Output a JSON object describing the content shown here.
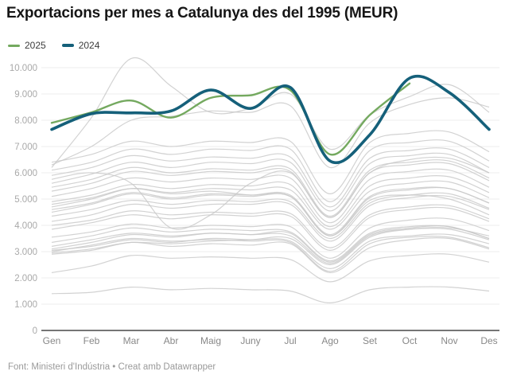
{
  "title": "Exportacions per mes a Catalunya des del 1995 (MEUR)",
  "legend": [
    {
      "label": "2025",
      "color": "#74a95f"
    },
    {
      "label": "2024",
      "color": "#15607a"
    }
  ],
  "footer": "Font: Ministeri d'Indústria • Creat amb Datawrapper",
  "colors": {
    "green_2025": "#74a95f",
    "teal_2024": "#15607a",
    "historical_gray": "#c8c8c8",
    "gridline": "#ececec",
    "axis": "#757575"
  },
  "chart_data": {
    "type": "line",
    "title": "Exportacions per mes a Catalunya des del 1995 (MEUR)",
    "xlabel": "",
    "ylabel": "MEUR",
    "grid": true,
    "legend_position": "top-left",
    "categories": [
      "Gen",
      "Feb",
      "Mar",
      "Abr",
      "Maig",
      "Juny",
      "Jul",
      "Ago",
      "Set",
      "Oct",
      "Nov",
      "Des"
    ],
    "ylim": [
      0,
      10500
    ],
    "yticks": [
      0,
      1000,
      2000,
      3000,
      4000,
      5000,
      6000,
      7000,
      8000,
      9000,
      10000
    ],
    "ytick_labels": [
      "0",
      "1.000",
      "2.000",
      "3.000",
      "4.000",
      "5.000",
      "6.000",
      "7.000",
      "8.000",
      "9.000",
      "10.000"
    ],
    "series": [
      {
        "name": "2025",
        "color": "#74a95f",
        "stroke_width": 2.4,
        "values": [
          7900,
          8300,
          8750,
          8100,
          8850,
          8950,
          9150,
          6700,
          8200,
          9400
        ]
      },
      {
        "name": "2024",
        "color": "#15607a",
        "stroke_width": 3.6,
        "values": [
          7650,
          8250,
          8280,
          8350,
          9150,
          8450,
          9250,
          6450,
          7450,
          9600,
          9050,
          7650
        ]
      }
    ],
    "historical": {
      "note": "unlabeled gray background lines, one per year since 1995 (values estimated)",
      "color": "#c8c8c8",
      "series": [
        [
          1400,
          1450,
          1650,
          1550,
          1600,
          1550,
          1500,
          1050,
          1550,
          1650,
          1650,
          1500
        ],
        [
          2200,
          2450,
          2850,
          2750,
          2800,
          2750,
          2700,
          1850,
          2650,
          2850,
          2900,
          2600
        ],
        [
          2900,
          3050,
          3350,
          3200,
          3300,
          3250,
          3300,
          2200,
          3150,
          3450,
          3500,
          3100
        ],
        [
          3000,
          3250,
          3500,
          3400,
          3450,
          3400,
          3350,
          2250,
          3300,
          3550,
          3550,
          3150
        ],
        [
          3050,
          3200,
          3450,
          3350,
          3500,
          3450,
          3400,
          2350,
          3400,
          3600,
          3650,
          3300
        ],
        [
          3100,
          3350,
          3650,
          3550,
          3700,
          3650,
          3700,
          2600,
          3650,
          3900,
          3950,
          3500
        ],
        [
          3350,
          3600,
          3900,
          3750,
          3850,
          3800,
          3750,
          2650,
          3700,
          3950,
          3950,
          3500
        ],
        [
          3200,
          3450,
          3700,
          3600,
          3700,
          3650,
          3600,
          2550,
          3600,
          3850,
          3850,
          3450
        ],
        [
          3550,
          3750,
          4050,
          3900,
          4000,
          3950,
          3950,
          2750,
          3900,
          4200,
          4250,
          3800
        ],
        [
          3850,
          4100,
          4400,
          4250,
          4400,
          4350,
          4350,
          3050,
          4300,
          4600,
          4650,
          4150
        ],
        [
          4000,
          4200,
          4550,
          4400,
          4500,
          4450,
          4450,
          3150,
          4400,
          4700,
          4750,
          4250
        ],
        [
          4350,
          4600,
          4950,
          4800,
          4950,
          4900,
          4900,
          3500,
          4850,
          5150,
          5200,
          4650
        ],
        [
          4700,
          5000,
          5400,
          5250,
          5400,
          5350,
          5350,
          3850,
          5300,
          5600,
          5650,
          5050
        ],
        [
          4800,
          5050,
          5400,
          5200,
          5300,
          5150,
          5100,
          3600,
          4950,
          5150,
          5000,
          4400
        ],
        [
          2950,
          3100,
          3350,
          3300,
          3400,
          3450,
          3500,
          2500,
          3550,
          3850,
          3900,
          3600
        ],
        [
          4150,
          4400,
          4800,
          4650,
          4800,
          4800,
          4800,
          3400,
          4750,
          5050,
          5100,
          4600
        ],
        [
          4500,
          4800,
          5200,
          5000,
          5150,
          5100,
          5100,
          3600,
          5050,
          5350,
          5400,
          4850
        ],
        [
          4600,
          4850,
          5250,
          5050,
          5200,
          5150,
          5150,
          3650,
          5100,
          5400,
          5400,
          4850
        ],
        [
          4900,
          5150,
          5550,
          5400,
          5550,
          5500,
          5550,
          3950,
          5500,
          5800,
          5850,
          5250
        ],
        [
          5100,
          5400,
          5800,
          5650,
          5800,
          5750,
          5800,
          4100,
          5750,
          6050,
          6100,
          5450
        ],
        [
          5300,
          5600,
          6050,
          5900,
          6050,
          6000,
          6050,
          4300,
          6000,
          6300,
          6350,
          5700
        ],
        [
          5450,
          5750,
          6200,
          6000,
          6150,
          6100,
          6150,
          4350,
          6100,
          6400,
          6450,
          5800
        ],
        [
          5600,
          5950,
          6400,
          6200,
          6400,
          6350,
          6400,
          4550,
          6350,
          6650,
          6700,
          6000
        ],
        [
          5900,
          6200,
          6650,
          6450,
          6600,
          6550,
          6600,
          4700,
          6550,
          6850,
          6900,
          6200
        ],
        [
          6100,
          6400,
          6900,
          6700,
          6900,
          6850,
          6900,
          4900,
          6850,
          7150,
          7200,
          6450
        ],
        [
          5750,
          6000,
          5600,
          3900,
          4400,
          5600,
          6000,
          4300,
          6000,
          6500,
          6550,
          6000
        ],
        [
          6400,
          6700,
          7200,
          7000,
          7200,
          7150,
          7200,
          5200,
          7150,
          7500,
          7550,
          6800
        ],
        [
          6300,
          7000,
          8000,
          8150,
          8350,
          8300,
          8550,
          6200,
          7900,
          8600,
          8850,
          8500
        ],
        [
          6200,
          8100,
          10350,
          9300,
          8300,
          8450,
          9000,
          6900,
          8200,
          8900,
          9350,
          8300
        ]
      ]
    }
  }
}
